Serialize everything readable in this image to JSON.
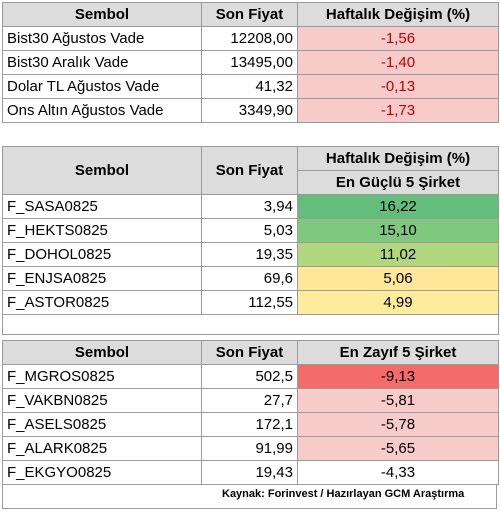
{
  "table1": {
    "headers": [
      "Sembol",
      "Son Fiyat",
      "Haftalık  Değişim (%)"
    ],
    "rows": [
      {
        "symbol": "Bist30 Ağustos Vade",
        "price": "12208,00",
        "change": "-1,56"
      },
      {
        "symbol": "Bist30 Aralık Vade",
        "price": "13495,00",
        "change": "-1,40"
      },
      {
        "symbol": "Dolar TL Ağustos Vade",
        "price": "41,32",
        "change": "-0,13"
      },
      {
        "symbol": "Ons Altın Ağustos Vade",
        "price": "3349,90",
        "change": "-1,73"
      }
    ]
  },
  "table2": {
    "headers": [
      "Sembol",
      "Son Fiyat",
      "Haftalık  Değişim (%)"
    ],
    "subheader": "En Güçlü 5 Şirket",
    "rows": [
      {
        "symbol": "F_SASA0825",
        "price": "3,94",
        "change": "16,22"
      },
      {
        "symbol": "F_HEKTS0825",
        "price": "5,03",
        "change": "15,10"
      },
      {
        "symbol": "F_DOHOL0825",
        "price": "19,35",
        "change": "11,02"
      },
      {
        "symbol": "F_ENJSA0825",
        "price": "69,6",
        "change": "5,06"
      },
      {
        "symbol": "F_ASTOR0825",
        "price": "112,55",
        "change": "4,99"
      }
    ]
  },
  "table3": {
    "headers": [
      "Sembol",
      "Son Fiyat",
      "En Zayıf 5 Şirket"
    ],
    "rows": [
      {
        "symbol": "F_MGROS0825",
        "price": "502,5",
        "change": "-9,13"
      },
      {
        "symbol": "F_VAKBN0825",
        "price": "27,7",
        "change": "-5,81"
      },
      {
        "symbol": "F_ASELS0825",
        "price": "172,1",
        "change": "-5,78"
      },
      {
        "symbol": "F_ALARK0825",
        "price": "91,99",
        "change": "-5,65"
      },
      {
        "symbol": "F_EKGYO0825",
        "price": "19,43",
        "change": "-4,33"
      }
    ]
  },
  "source": "Kaynak: Forinvest / Hazırlayan GCM Araştırma",
  "colors": {
    "header_bg": "#dcdcdc",
    "negative_text": "#c00000",
    "negative_bg": "#f8cbcb",
    "strong_negative_bg": "#f36b6b",
    "green_dark": "#63be7b",
    "green_mid": "#7fc97f",
    "green_light": "#b0d67e",
    "yellow": "#ffe699"
  }
}
